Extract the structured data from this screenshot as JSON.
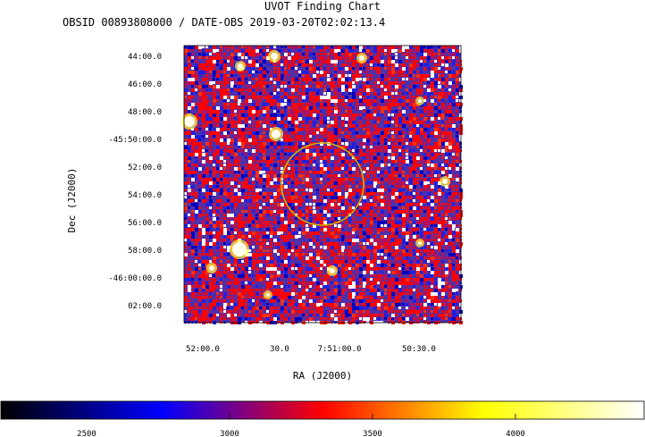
{
  "chart_data": {
    "type": "heatmap",
    "title": "UVOT Finding Chart",
    "subtitle": "OBSID 00893808000 / DATE-OBS 2019-03-20T02:02:13.4",
    "xlabel": "RA (J2000)",
    "ylabel": "Dec (J2000)",
    "x_ticks": [
      "52:00.0",
      "30.0",
      "7:51:00.0",
      "50:30.0"
    ],
    "y_ticks": [
      "44:00.0",
      "46:00.0",
      "48:00.0",
      "-45:50:00.0",
      "52:00.0",
      "54:00.0",
      "56:00.0",
      "58:00.0",
      "-46:00:00.0",
      "02:00.0"
    ],
    "colorbar": {
      "ticks": [
        2500,
        3000,
        3500,
        4000
      ],
      "range": [
        2200,
        4450
      ],
      "colormap": [
        "#000000",
        "#0000ff",
        "#ff0000",
        "#ffff00",
        "#ffffff"
      ]
    },
    "markers": [
      {
        "type": "circle",
        "color": "#d4b000"
      }
    ]
  }
}
